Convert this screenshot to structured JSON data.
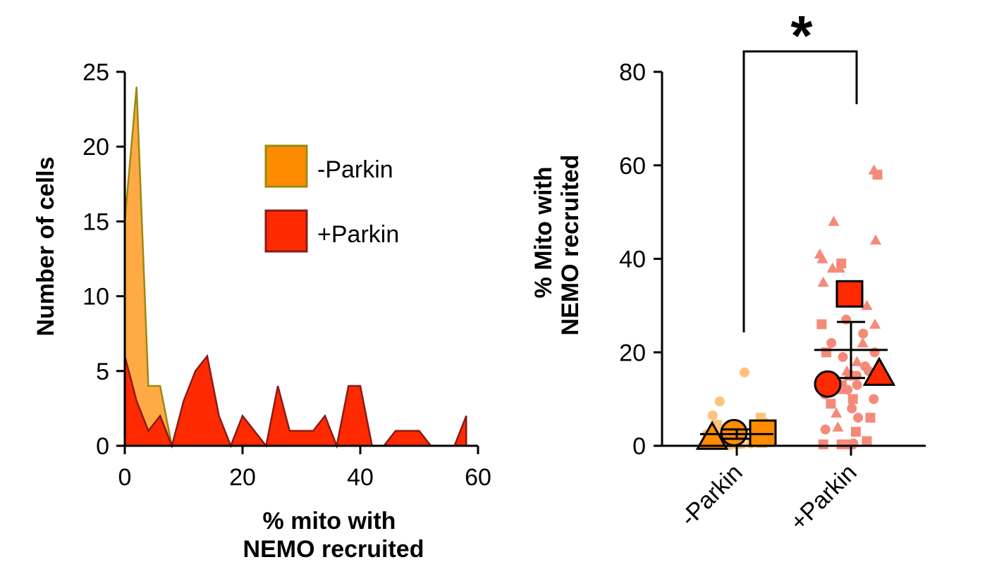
{
  "chart_data": [
    {
      "type": "area",
      "xlabel_lines": [
        "% mito with",
        "NEMO recruited"
      ],
      "ylabel": "Number of cells",
      "xlim": [
        0,
        60
      ],
      "ylim": [
        0,
        25
      ],
      "x_ticks": [
        0,
        20,
        40,
        60
      ],
      "y_ticks": [
        0,
        5,
        10,
        15,
        20,
        25
      ],
      "legend_position": "top-right",
      "series": [
        {
          "name": "-Parkin",
          "fill": "#FFAA44",
          "legend_fill": "#FF8C00",
          "stroke": "#9A8A10",
          "points": [
            [
              0,
              15
            ],
            [
              2,
              24
            ],
            [
              4,
              4
            ],
            [
              6,
              4
            ],
            [
              8,
              0
            ],
            [
              10,
              1
            ],
            [
              12,
              0
            ],
            [
              14,
              0
            ],
            [
              16,
              1
            ],
            [
              18,
              0
            ]
          ]
        },
        {
          "name": "+Parkin",
          "fill": "#FF2A00",
          "legend_fill": "#FF2A00",
          "stroke": "#8B1A1A",
          "points": [
            [
              0,
              6
            ],
            [
              2,
              3
            ],
            [
              4,
              1
            ],
            [
              6,
              2
            ],
            [
              8,
              0
            ],
            [
              10,
              3
            ],
            [
              12,
              5
            ],
            [
              14,
              6
            ],
            [
              16,
              2
            ],
            [
              18,
              0
            ],
            [
              20,
              2
            ],
            [
              22,
              1
            ],
            [
              24,
              0
            ],
            [
              26,
              4
            ],
            [
              28,
              1
            ],
            [
              30,
              1
            ],
            [
              32,
              1
            ],
            [
              34,
              2
            ],
            [
              36,
              0
            ],
            [
              38,
              4
            ],
            [
              40,
              4
            ],
            [
              42,
              0
            ],
            [
              44,
              0
            ],
            [
              46,
              1
            ],
            [
              48,
              1
            ],
            [
              50,
              1
            ],
            [
              52,
              0
            ],
            [
              54,
              0
            ],
            [
              56,
              0
            ],
            [
              58,
              2
            ]
          ]
        }
      ]
    },
    {
      "type": "scatter",
      "ylabel_lines": [
        "% Mito with",
        "NEMO recruited"
      ],
      "ylim": [
        0,
        80
      ],
      "y_ticks": [
        0,
        20,
        40,
        60,
        80
      ],
      "categories": [
        "-Parkin",
        "+Parkin"
      ],
      "significance": "*",
      "groups": [
        {
          "name": "-Parkin",
          "light_color": "#FFC27A",
          "dark_color": "#FF8C00",
          "cell_values": [
            [
              0.5,
              "tri"
            ],
            [
              1.2,
              "tri"
            ],
            [
              0.8,
              "tri"
            ],
            [
              2,
              "tri"
            ],
            [
              3,
              "tri"
            ],
            [
              1,
              "tri"
            ],
            [
              4,
              "tri"
            ],
            [
              0.3,
              "tri"
            ],
            [
              15.7,
              "circle"
            ],
            [
              9.5,
              "circle"
            ],
            [
              6.5,
              "circle"
            ],
            [
              5,
              "circle"
            ],
            [
              4,
              "circle"
            ],
            [
              3,
              "circle"
            ],
            [
              2,
              "circle"
            ],
            [
              1.5,
              "circle"
            ],
            [
              1,
              "circle"
            ],
            [
              0.5,
              "circle"
            ],
            [
              0.2,
              "circle"
            ],
            [
              3.5,
              "circle"
            ],
            [
              2.5,
              "circle"
            ],
            [
              6,
              "square"
            ],
            [
              4.5,
              "square"
            ],
            [
              3,
              "square"
            ],
            [
              2,
              "square"
            ],
            [
              1,
              "square"
            ],
            [
              0.5,
              "square"
            ],
            [
              0.2,
              "square"
            ]
          ],
          "replicate_means": [
            [
              1.8,
              "tri"
            ],
            [
              2.8,
              "circle"
            ],
            [
              2.7,
              "square"
            ]
          ],
          "mean": 2.5,
          "sem": [
            1.5,
            3.5
          ]
        },
        {
          "name": "+Parkin",
          "light_color": "#F58A7A",
          "dark_color": "#FF2A00",
          "cell_values": [
            [
              58,
              "square"
            ],
            [
              39,
              "square"
            ],
            [
              32,
              "square"
            ],
            [
              20,
              "square"
            ],
            [
              15,
              "square"
            ],
            [
              10,
              "square"
            ],
            [
              6,
              "square"
            ],
            [
              3,
              "square"
            ],
            [
              1,
              "square"
            ],
            [
              0.3,
              "square"
            ],
            [
              0.3,
              "square"
            ],
            [
              0.3,
              "square"
            ],
            [
              0.3,
              "square"
            ],
            [
              13,
              "square"
            ],
            [
              9,
              "square"
            ],
            [
              26,
              "square"
            ],
            [
              59,
              "tri"
            ],
            [
              48,
              "tri"
            ],
            [
              44,
              "tri"
            ],
            [
              41,
              "tri"
            ],
            [
              40,
              "tri"
            ],
            [
              38,
              "tri"
            ],
            [
              38,
              "tri"
            ],
            [
              35,
              "tri"
            ],
            [
              30,
              "tri"
            ],
            [
              26,
              "tri"
            ],
            [
              22,
              "tri"
            ],
            [
              18,
              "tri"
            ],
            [
              16,
              "tri"
            ],
            [
              12,
              "tri"
            ],
            [
              7,
              "tri"
            ],
            [
              4,
              "tri"
            ],
            [
              27,
              "circle"
            ],
            [
              22,
              "circle"
            ],
            [
              20,
              "circle"
            ],
            [
              19,
              "circle"
            ],
            [
              16,
              "circle"
            ],
            [
              15,
              "circle"
            ],
            [
              13,
              "circle"
            ],
            [
              12,
              "circle"
            ],
            [
              10,
              "circle"
            ],
            [
              8,
              "circle"
            ],
            [
              6,
              "circle"
            ],
            [
              3.5,
              "circle"
            ],
            [
              0.5,
              "circle"
            ],
            [
              24,
              "circle"
            ],
            [
              17,
              "circle"
            ],
            [
              11,
              "circle"
            ]
          ],
          "replicate_means": [
            [
              32.5,
              "square"
            ],
            [
              13.2,
              "circle"
            ],
            [
              15.5,
              "tri"
            ]
          ],
          "mean": 20.5,
          "sem": [
            14.5,
            26.5
          ]
        }
      ]
    }
  ]
}
